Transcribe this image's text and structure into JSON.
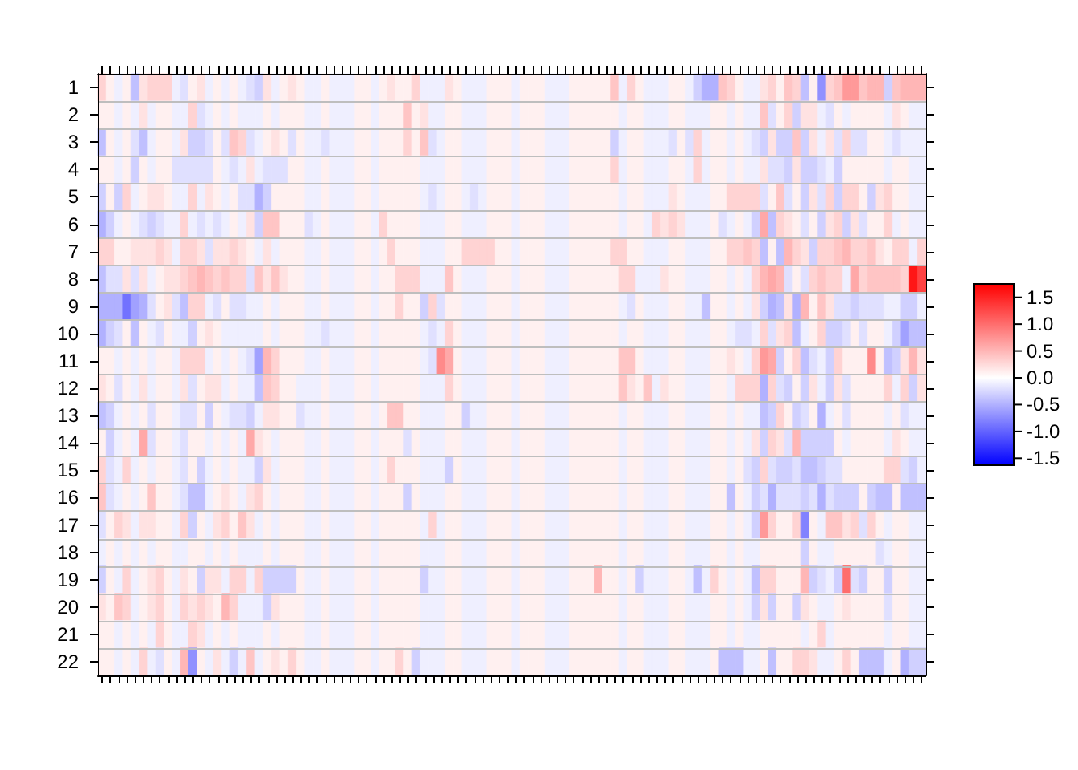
{
  "chart_data": {
    "type": "heatmap",
    "categories": [
      null,
      null,
      null,
      null,
      null,
      null,
      null,
      null,
      null,
      null,
      null,
      null,
      null,
      null,
      null,
      null,
      null,
      null,
      null,
      null,
      null,
      null,
      null,
      null,
      null,
      null,
      null,
      null,
      null,
      null,
      null,
      null,
      null,
      null,
      null,
      null,
      null,
      null,
      null,
      null,
      null,
      null,
      null,
      null,
      null,
      null,
      null,
      null,
      null,
      null,
      null,
      null,
      null,
      null,
      null,
      null,
      null,
      null,
      null,
      null,
      null,
      null,
      null,
      null,
      null,
      null,
      null,
      null,
      null,
      null,
      null,
      null,
      null,
      null,
      null,
      null,
      null,
      null,
      null,
      null,
      null,
      null,
      null,
      null,
      null,
      null,
      null,
      null,
      null,
      null,
      null,
      null,
      null,
      null,
      null,
      null,
      null,
      null,
      null,
      null
    ],
    "y_categories": [
      "1",
      "2",
      "3",
      "4",
      "5",
      "6",
      "7",
      "8",
      "9",
      "10",
      "11",
      "12",
      "13",
      "14",
      "15",
      "16",
      "17",
      "18",
      "19",
      "20",
      "21",
      "22"
    ],
    "cells": [
      [
        0.3,
        0.1,
        -0.1,
        0.1,
        -0.4,
        0.2,
        0.3,
        0.3,
        0.3,
        -0.1,
        -0.2,
        0.1,
        0.2,
        -0.1,
        0.1,
        -0.1,
        0.1,
        -0.1,
        -0.2,
        -0.3,
        0.2,
        -0.1,
        0.1,
        0.2,
        0.1,
        -0.1,
        -0.1,
        0.1,
        -0.1,
        -0.1,
        -0.1,
        0.1,
        0.1,
        -0.1,
        0.1,
        0.2,
        0.1,
        0.1,
        0.3,
        -0.1,
        -0.1,
        -0.1,
        0.2,
        0.1,
        -0.1,
        -0.1,
        -0.1,
        0.1,
        0.1,
        0.1,
        -0.1,
        0.1,
        0.1,
        0.1,
        -0.1,
        -0.1,
        -0.1,
        0.1,
        0.1,
        0.1,
        0.1,
        0.1,
        0.4,
        -0.1,
        0.3,
        0.1,
        -0.1,
        -0.1,
        -0.1,
        0.1,
        0.1,
        -0.1,
        -0.3,
        -0.5,
        -0.5,
        0.4,
        0.3,
        0.1,
        -0.1,
        -0.1,
        0.2,
        0.3,
        0.1,
        0.4,
        0.3,
        -0.4,
        0.1,
        -0.7,
        0.3,
        0.4,
        0.7,
        0.7,
        0.4,
        0.5,
        0.5,
        -0.3,
        0.4,
        0.5,
        0.5,
        0.5
      ],
      [
        0.1,
        0.1,
        -0.1,
        0.1,
        -0.1,
        0.2,
        -0.1,
        0.1,
        0.1,
        -0.1,
        -0.1,
        0.3,
        -0.2,
        -0.1,
        0.1,
        -0.1,
        0.1,
        -0.1,
        -0.1,
        -0.1,
        0.1,
        -0.1,
        0.1,
        0.1,
        0.1,
        -0.1,
        -0.1,
        0.1,
        -0.1,
        -0.1,
        -0.1,
        0.1,
        0.1,
        -0.1,
        0.1,
        0.1,
        0.1,
        0.4,
        0.1,
        0.2,
        -0.1,
        -0.1,
        0.1,
        0.1,
        -0.1,
        -0.1,
        -0.1,
        0.1,
        0.1,
        0.1,
        -0.1,
        0.1,
        0.1,
        0.1,
        -0.1,
        -0.1,
        -0.1,
        0.1,
        0.1,
        0.1,
        0.1,
        0.1,
        0.1,
        -0.1,
        0.1,
        0.1,
        -0.1,
        -0.1,
        -0.1,
        0.1,
        0.1,
        -0.1,
        -0.1,
        -0.1,
        0.1,
        0.1,
        -0.1,
        0.1,
        -0.1,
        -0.1,
        0.4,
        -0.2,
        0.1,
        0.3,
        -0.3,
        0.2,
        0.2,
        -0.1,
        -0.2,
        0.1,
        -0.1,
        0.1,
        0.1,
        0.1,
        0.1,
        -0.1,
        0.2,
        0.1,
        -0.1,
        -0.1
      ],
      [
        -0.4,
        0.1,
        -0.1,
        0.1,
        -0.2,
        -0.4,
        -0.1,
        0.1,
        0.1,
        -0.1,
        0.2,
        -0.3,
        -0.3,
        -0.2,
        0.1,
        -0.2,
        0.4,
        0.3,
        -0.2,
        -0.1,
        0.1,
        0.2,
        0.1,
        -0.2,
        0.1,
        -0.1,
        -0.1,
        -0.2,
        -0.1,
        -0.1,
        -0.1,
        0.1,
        0.1,
        -0.1,
        0.1,
        0.1,
        0.1,
        0.3,
        0.1,
        0.4,
        -0.2,
        -0.1,
        0.1,
        0.1,
        -0.1,
        -0.1,
        -0.1,
        0.1,
        0.1,
        0.1,
        -0.1,
        0.1,
        0.1,
        0.1,
        -0.1,
        -0.1,
        -0.1,
        0.1,
        0.1,
        0.1,
        0.1,
        0.1,
        -0.3,
        -0.1,
        0.1,
        0.1,
        -0.1,
        -0.1,
        -0.1,
        -0.2,
        0.1,
        -0.2,
        0.3,
        -0.1,
        0.1,
        0.1,
        -0.1,
        0.1,
        -0.1,
        -0.2,
        -0.3,
        0.2,
        -0.3,
        -0.3,
        0.4,
        -0.3,
        0.2,
        -0.1,
        0.2,
        -0.2,
        0.3,
        -0.2,
        -0.2,
        0.1,
        0.1,
        -0.1,
        -0.2,
        -0.1,
        -0.1,
        -0.1
      ],
      [
        0.1,
        0.1,
        -0.1,
        0.1,
        -0.3,
        0.1,
        -0.1,
        0.1,
        0.1,
        -0.2,
        -0.2,
        -0.2,
        -0.2,
        -0.2,
        0.1,
        -0.1,
        -0.2,
        -0.1,
        0.2,
        -0.1,
        -0.2,
        -0.2,
        -0.2,
        0.1,
        0.1,
        -0.1,
        -0.1,
        0.1,
        -0.1,
        -0.1,
        -0.1,
        0.1,
        0.1,
        -0.1,
        0.1,
        0.1,
        0.1,
        0.1,
        0.1,
        -0.1,
        -0.1,
        -0.1,
        0.1,
        0.1,
        -0.1,
        -0.1,
        -0.1,
        0.1,
        0.1,
        0.1,
        -0.1,
        0.1,
        0.1,
        0.1,
        -0.1,
        -0.1,
        -0.1,
        0.1,
        0.1,
        0.1,
        0.1,
        0.1,
        0.3,
        -0.1,
        0.1,
        0.1,
        -0.1,
        -0.1,
        -0.1,
        0.1,
        0.1,
        -0.1,
        0.3,
        -0.1,
        0.1,
        0.1,
        -0.1,
        0.1,
        -0.1,
        -0.1,
        0.2,
        -0.2,
        -0.2,
        -0.3,
        0.2,
        -0.3,
        -0.3,
        -0.2,
        -0.1,
        -0.3,
        0.1,
        0.1,
        0.1,
        0.1,
        0.1,
        -0.1,
        0.1,
        0.1,
        -0.1,
        -0.1
      ],
      [
        -0.3,
        0.1,
        -0.3,
        0.3,
        -0.1,
        0.1,
        0.2,
        0.2,
        0.1,
        -0.1,
        -0.1,
        0.3,
        -0.1,
        0.2,
        0.1,
        -0.1,
        0.1,
        -0.2,
        -0.2,
        -0.5,
        -0.3,
        0.1,
        0.1,
        0.1,
        0.1,
        -0.1,
        -0.1,
        0.1,
        -0.1,
        -0.1,
        -0.1,
        0.1,
        0.1,
        -0.1,
        0.1,
        0.1,
        0.1,
        0.1,
        0.1,
        -0.1,
        -0.2,
        -0.1,
        0.1,
        0.1,
        -0.1,
        -0.2,
        -0.1,
        0.1,
        0.1,
        0.1,
        -0.1,
        0.1,
        0.1,
        0.1,
        -0.1,
        -0.1,
        -0.1,
        0.1,
        0.1,
        0.1,
        0.1,
        0.1,
        0.1,
        -0.1,
        0.1,
        0.1,
        -0.1,
        -0.1,
        -0.1,
        0.2,
        0.1,
        -0.1,
        -0.1,
        -0.1,
        0.1,
        0.1,
        0.3,
        0.3,
        0.3,
        0.3,
        -0.2,
        0.1,
        0.4,
        -0.2,
        0.1,
        -0.3,
        0.2,
        -0.2,
        0.3,
        -0.3,
        0.3,
        0.3,
        0.1,
        -0.3,
        0.2,
        0.3,
        0.1,
        0.1,
        -0.1,
        -0.1
      ],
      [
        -0.5,
        -0.3,
        -0.1,
        0.1,
        -0.1,
        -0.2,
        -0.3,
        -0.2,
        -0.1,
        -0.1,
        0.3,
        -0.1,
        -0.2,
        -0.1,
        -0.2,
        -0.1,
        0.1,
        -0.1,
        0.2,
        -0.3,
        0.4,
        0.4,
        0.1,
        0.1,
        0.1,
        -0.2,
        -0.1,
        0.1,
        -0.1,
        -0.1,
        -0.1,
        0.1,
        0.1,
        -0.1,
        0.3,
        0.1,
        0.1,
        0.1,
        0.1,
        -0.1,
        -0.1,
        -0.1,
        0.1,
        0.1,
        -0.1,
        -0.1,
        -0.1,
        0.1,
        0.1,
        0.1,
        -0.1,
        0.1,
        0.1,
        0.1,
        -0.1,
        -0.1,
        -0.1,
        0.1,
        0.1,
        0.1,
        0.1,
        0.1,
        0.1,
        -0.1,
        0.1,
        0.1,
        -0.1,
        0.3,
        0.2,
        0.3,
        0.2,
        -0.1,
        -0.1,
        -0.1,
        0.1,
        -0.2,
        -0.1,
        0.1,
        -0.1,
        -0.3,
        0.6,
        -0.4,
        0.3,
        0.2,
        0.1,
        -0.2,
        0.1,
        -0.3,
        0.2,
        0.3,
        -0.3,
        0.2,
        -0.2,
        0.1,
        0.1,
        0.3,
        -0.1,
        0.1,
        -0.1,
        -0.1
      ],
      [
        0.3,
        0.3,
        0.1,
        0.1,
        0.2,
        0.2,
        0.2,
        0.3,
        0.2,
        -0.1,
        0.3,
        0.3,
        0.2,
        -0.2,
        0.2,
        0.2,
        0.3,
        0.2,
        0.1,
        -0.1,
        0.2,
        -0.1,
        0.1,
        0.1,
        0.1,
        -0.1,
        -0.1,
        0.1,
        -0.1,
        -0.1,
        -0.1,
        0.1,
        0.1,
        -0.1,
        0.1,
        0.3,
        0.1,
        0.1,
        0.1,
        -0.1,
        -0.1,
        -0.1,
        0.1,
        0.1,
        0.3,
        0.3,
        0.3,
        0.3,
        0.1,
        0.1,
        -0.1,
        0.1,
        0.1,
        0.1,
        -0.1,
        -0.1,
        -0.1,
        0.1,
        0.1,
        0.1,
        0.1,
        0.1,
        0.3,
        0.3,
        0.1,
        0.1,
        -0.1,
        -0.1,
        -0.1,
        0.1,
        0.1,
        -0.1,
        -0.1,
        -0.1,
        0.1,
        0.1,
        0.3,
        0.3,
        0.4,
        0.3,
        -0.4,
        0.1,
        -0.4,
        0.5,
        0.3,
        0.2,
        -0.3,
        0.3,
        0.3,
        0.4,
        0.5,
        0.3,
        0.3,
        0.4,
        0.2,
        0.1,
        0.3,
        0.3,
        -0.1,
        0.3
      ],
      [
        -0.4,
        -0.2,
        -0.2,
        0.2,
        -0.2,
        0.2,
        -0.1,
        0.1,
        0.2,
        0.2,
        0.3,
        0.4,
        0.5,
        0.4,
        0.3,
        0.4,
        0.3,
        0.3,
        -0.2,
        0.4,
        0.2,
        0.4,
        0.2,
        0.1,
        0.1,
        -0.1,
        -0.1,
        0.1,
        -0.1,
        -0.1,
        -0.1,
        0.1,
        0.1,
        -0.1,
        0.1,
        0.1,
        0.3,
        0.3,
        0.3,
        -0.1,
        -0.1,
        -0.1,
        0.4,
        0.1,
        -0.1,
        -0.1,
        -0.1,
        0.1,
        0.1,
        0.1,
        -0.1,
        0.1,
        0.1,
        0.1,
        -0.1,
        -0.1,
        -0.1,
        0.1,
        0.1,
        0.1,
        0.1,
        0.1,
        0.1,
        0.3,
        0.3,
        -0.1,
        -0.1,
        -0.1,
        0.2,
        0.1,
        0.1,
        -0.1,
        -0.1,
        -0.1,
        0.1,
        0.1,
        -0.1,
        0.1,
        -0.1,
        0.3,
        0.5,
        0.6,
        0.5,
        -0.2,
        0.1,
        -0.2,
        0.3,
        0.4,
        0.3,
        0.3,
        -0.1,
        0.6,
        0.3,
        0.4,
        0.4,
        0.4,
        0.4,
        0.3,
        1.6,
        1.3
      ],
      [
        -0.5,
        -0.5,
        -0.5,
        -0.9,
        -0.6,
        -0.5,
        -0.2,
        0.1,
        0.2,
        -0.2,
        -0.4,
        0.3,
        0.3,
        -0.1,
        -0.2,
        0.1,
        -0.2,
        -0.2,
        -0.1,
        -0.1,
        0.1,
        -0.1,
        0.1,
        0.1,
        0.1,
        -0.1,
        -0.1,
        0.1,
        -0.1,
        -0.1,
        -0.1,
        0.1,
        0.1,
        -0.1,
        0.1,
        0.1,
        0.3,
        0.1,
        0.1,
        -0.3,
        0.3,
        -0.2,
        0.1,
        0.1,
        -0.1,
        -0.1,
        -0.1,
        0.1,
        0.1,
        0.1,
        -0.1,
        0.1,
        0.1,
        0.1,
        -0.1,
        -0.1,
        -0.1,
        0.1,
        0.1,
        0.1,
        0.1,
        0.1,
        0.1,
        -0.1,
        -0.2,
        0.1,
        -0.1,
        -0.1,
        -0.1,
        0.1,
        0.1,
        -0.1,
        -0.1,
        -0.4,
        0.1,
        0.1,
        -0.1,
        0.1,
        -0.1,
        0.2,
        -0.3,
        -0.5,
        -0.4,
        0.2,
        -0.5,
        0.5,
        0.1,
        0.4,
        0.2,
        -0.2,
        -0.2,
        -0.3,
        -0.2,
        -0.2,
        -0.2,
        -0.1,
        -0.1,
        -0.3,
        -0.3,
        -0.1
      ],
      [
        -0.5,
        -0.3,
        -0.2,
        0.1,
        -0.4,
        0.1,
        -0.1,
        -0.2,
        0.1,
        -0.1,
        -0.1,
        -0.3,
        0.1,
        0.2,
        0.1,
        -0.1,
        -0.1,
        -0.1,
        -0.1,
        -0.1,
        0.1,
        -0.1,
        0.1,
        0.1,
        0.1,
        -0.1,
        -0.1,
        -0.2,
        -0.1,
        -0.1,
        -0.1,
        0.1,
        0.1,
        -0.1,
        0.1,
        0.1,
        0.1,
        0.1,
        0.1,
        -0.1,
        -0.2,
        -0.1,
        0.3,
        0.1,
        -0.1,
        -0.1,
        -0.1,
        0.1,
        0.1,
        0.1,
        -0.1,
        0.1,
        0.1,
        0.1,
        -0.1,
        -0.1,
        -0.1,
        0.1,
        0.1,
        0.1,
        0.1,
        0.1,
        0.1,
        -0.1,
        0.1,
        0.1,
        -0.1,
        -0.1,
        -0.1,
        0.1,
        0.1,
        -0.1,
        -0.1,
        -0.1,
        0.1,
        0.1,
        -0.1,
        -0.2,
        -0.2,
        -0.1,
        0.3,
        -0.2,
        0.2,
        0.3,
        -0.4,
        -0.1,
        0.1,
        0.3,
        -0.3,
        -0.3,
        -0.2,
        0.1,
        -0.2,
        0.1,
        0.1,
        -0.1,
        -0.3,
        -0.6,
        -0.4,
        -0.4
      ],
      [
        0.1,
        0.1,
        -0.1,
        0.1,
        -0.1,
        0.1,
        -0.1,
        0.1,
        0.1,
        -0.1,
        0.3,
        0.3,
        0.3,
        -0.1,
        0.1,
        -0.1,
        0.1,
        -0.1,
        -0.2,
        -0.6,
        0.5,
        0.3,
        0.1,
        0.1,
        0.1,
        -0.1,
        -0.1,
        0.1,
        -0.1,
        -0.1,
        -0.1,
        0.1,
        0.1,
        -0.1,
        0.1,
        0.1,
        0.1,
        0.1,
        0.1,
        -0.1,
        -0.2,
        0.8,
        0.6,
        0.1,
        -0.1,
        -0.1,
        -0.1,
        0.1,
        0.1,
        0.1,
        -0.1,
        0.1,
        0.1,
        0.1,
        -0.1,
        -0.1,
        -0.1,
        0.1,
        0.1,
        0.1,
        0.1,
        0.1,
        0.1,
        0.4,
        0.4,
        0.1,
        -0.1,
        -0.1,
        -0.1,
        0.1,
        0.1,
        -0.1,
        -0.1,
        -0.1,
        0.1,
        0.1,
        0.2,
        0.1,
        -0.1,
        0.3,
        0.7,
        0.6,
        -0.3,
        0.1,
        0.3,
        -0.4,
        -0.2,
        -0.1,
        -0.3,
        0.3,
        0.1,
        0.1,
        0.1,
        0.8,
        0.1,
        -0.4,
        -0.3,
        0.2,
        0.5,
        0.2
      ],
      [
        0.2,
        0.1,
        -0.2,
        0.1,
        -0.1,
        0.2,
        -0.1,
        0.1,
        0.1,
        -0.1,
        0.2,
        -0.2,
        0.1,
        0.2,
        0.2,
        -0.1,
        0.1,
        -0.1,
        -0.1,
        -0.4,
        0.4,
        0.3,
        0.1,
        0.1,
        -0.1,
        -0.1,
        -0.1,
        0.1,
        -0.1,
        -0.1,
        -0.1,
        0.1,
        0.1,
        -0.1,
        0.1,
        0.1,
        0.1,
        0.1,
        0.1,
        -0.1,
        -0.1,
        -0.1,
        0.3,
        0.1,
        -0.1,
        -0.1,
        -0.1,
        0.1,
        0.1,
        0.1,
        -0.1,
        0.1,
        0.1,
        0.1,
        -0.1,
        -0.1,
        -0.1,
        0.1,
        0.1,
        0.1,
        0.1,
        0.1,
        0.1,
        0.4,
        0.2,
        0.1,
        0.4,
        -0.1,
        0.2,
        0.1,
        0.1,
        -0.1,
        -0.1,
        -0.1,
        0.1,
        0.1,
        -0.1,
        0.3,
        0.3,
        0.3,
        -0.5,
        0.3,
        -0.2,
        -0.3,
        0.1,
        -0.3,
        0.2,
        -0.1,
        -0.3,
        0.2,
        -0.2,
        0.1,
        0.1,
        0.1,
        0.1,
        0.3,
        -0.1,
        0.3,
        -0.3,
        0.2
      ],
      [
        -0.4,
        -0.3,
        -0.1,
        0.1,
        -0.1,
        0.1,
        -0.2,
        0.1,
        0.1,
        -0.1,
        -0.2,
        -0.2,
        0.1,
        -0.3,
        0.1,
        -0.1,
        -0.2,
        -0.2,
        -0.3,
        -0.1,
        0.2,
        0.2,
        0.1,
        0.1,
        -0.2,
        -0.1,
        -0.1,
        0.1,
        -0.1,
        -0.1,
        -0.1,
        0.1,
        0.1,
        -0.1,
        0.1,
        0.4,
        0.4,
        0.1,
        0.1,
        -0.1,
        -0.1,
        -0.1,
        0.1,
        0.1,
        -0.3,
        -0.1,
        -0.1,
        0.1,
        0.1,
        0.1,
        -0.1,
        0.1,
        0.1,
        0.1,
        -0.1,
        -0.1,
        -0.1,
        0.1,
        0.1,
        0.1,
        0.1,
        0.1,
        0.1,
        -0.1,
        0.1,
        0.1,
        -0.1,
        -0.1,
        -0.1,
        0.1,
        0.1,
        -0.1,
        -0.1,
        -0.1,
        0.1,
        0.1,
        -0.1,
        0.1,
        -0.1,
        -0.1,
        -0.4,
        -0.3,
        0.3,
        0.1,
        -0.3,
        -0.2,
        0.1,
        -0.5,
        -0.1,
        0.1,
        -0.2,
        0.1,
        0.1,
        0.1,
        0.1,
        -0.1,
        0.1,
        -0.2,
        -0.1,
        -0.1
      ],
      [
        0.1,
        -0.3,
        -0.1,
        0.1,
        -0.1,
        0.6,
        -0.2,
        0.1,
        0.1,
        -0.1,
        -0.2,
        0.1,
        0.1,
        -0.1,
        0.1,
        -0.1,
        0.1,
        -0.1,
        0.6,
        0.2,
        0.1,
        -0.1,
        0.1,
        0.1,
        0.1,
        -0.1,
        -0.1,
        0.1,
        -0.1,
        -0.1,
        -0.1,
        0.1,
        0.1,
        -0.1,
        0.1,
        0.1,
        0.1,
        -0.2,
        0.1,
        -0.1,
        -0.1,
        -0.1,
        0.1,
        0.1,
        -0.1,
        -0.1,
        -0.1,
        0.1,
        0.1,
        0.1,
        -0.1,
        0.1,
        0.1,
        0.1,
        -0.1,
        -0.1,
        -0.1,
        0.1,
        0.1,
        0.1,
        0.1,
        0.1,
        0.1,
        -0.1,
        0.1,
        0.1,
        -0.1,
        -0.1,
        -0.1,
        0.1,
        0.1,
        -0.1,
        -0.1,
        -0.1,
        0.1,
        0.1,
        -0.1,
        0.1,
        -0.1,
        0.2,
        -0.3,
        0.3,
        0.2,
        -0.2,
        0.5,
        -0.3,
        -0.3,
        -0.3,
        -0.3,
        0.1,
        -0.1,
        0.1,
        0.1,
        0.1,
        0.1,
        -0.1,
        0.2,
        0.1,
        -0.1,
        -0.1
      ],
      [
        0.3,
        -0.2,
        -0.1,
        0.3,
        -0.1,
        0.1,
        -0.1,
        0.1,
        0.1,
        -0.1,
        -0.2,
        0.1,
        -0.3,
        -0.1,
        0.1,
        -0.1,
        0.1,
        -0.1,
        -0.1,
        -0.3,
        0.2,
        -0.1,
        0.1,
        0.1,
        0.1,
        -0.1,
        -0.1,
        0.1,
        -0.1,
        -0.1,
        -0.1,
        0.1,
        0.1,
        -0.1,
        0.1,
        0.3,
        0.1,
        0.1,
        0.1,
        -0.1,
        -0.1,
        -0.1,
        -0.3,
        0.1,
        -0.1,
        -0.1,
        -0.1,
        0.1,
        0.1,
        0.1,
        -0.1,
        0.1,
        0.1,
        0.1,
        -0.1,
        -0.1,
        -0.1,
        0.1,
        0.1,
        0.1,
        0.1,
        0.1,
        0.1,
        -0.1,
        0.1,
        0.1,
        -0.1,
        -0.1,
        -0.1,
        0.1,
        0.1,
        -0.1,
        -0.1,
        -0.1,
        0.1,
        0.1,
        -0.1,
        0.1,
        -0.2,
        -0.3,
        0.3,
        -0.2,
        -0.3,
        -0.3,
        -0.2,
        -0.4,
        -0.4,
        -0.3,
        -0.2,
        -0.2,
        0.1,
        0.1,
        0.1,
        0.1,
        0.1,
        0.3,
        0.3,
        -0.2,
        -0.3,
        -0.1
      ],
      [
        0.4,
        -0.2,
        -0.1,
        0.1,
        -0.1,
        0.1,
        0.4,
        0.1,
        0.1,
        -0.1,
        -0.2,
        -0.4,
        -0.4,
        -0.1,
        0.1,
        0.2,
        0.1,
        -0.1,
        0.2,
        0.3,
        0.1,
        -0.1,
        0.1,
        0.1,
        0.1,
        -0.1,
        -0.1,
        0.1,
        -0.1,
        -0.1,
        -0.1,
        0.1,
        0.1,
        -0.1,
        0.1,
        0.1,
        0.1,
        -0.3,
        0.1,
        -0.1,
        -0.1,
        -0.1,
        0.1,
        0.1,
        -0.1,
        -0.1,
        -0.1,
        0.1,
        0.1,
        0.1,
        -0.1,
        0.1,
        0.1,
        0.1,
        -0.1,
        -0.1,
        -0.1,
        0.1,
        0.1,
        0.1,
        0.1,
        0.1,
        0.1,
        -0.1,
        0.1,
        0.1,
        -0.1,
        -0.1,
        -0.1,
        0.1,
        0.1,
        -0.1,
        -0.1,
        -0.1,
        0.1,
        0.1,
        -0.4,
        0.1,
        -0.1,
        -0.3,
        -0.2,
        -0.5,
        -0.2,
        -0.2,
        -0.2,
        -0.3,
        -0.2,
        -0.5,
        -0.2,
        -0.3,
        -0.3,
        -0.3,
        0.1,
        -0.3,
        -0.4,
        -0.4,
        0.1,
        -0.4,
        -0.4,
        -0.4
      ],
      [
        -0.2,
        0.1,
        0.3,
        0.2,
        -0.1,
        0.2,
        0.2,
        0.1,
        0.1,
        -0.1,
        0.3,
        -0.3,
        0.1,
        -0.1,
        0.2,
        0.3,
        0.1,
        0.4,
        0.2,
        -0.1,
        0.1,
        -0.1,
        0.1,
        0.1,
        0.1,
        -0.1,
        -0.1,
        0.1,
        -0.1,
        -0.1,
        -0.1,
        0.1,
        0.1,
        -0.1,
        0.1,
        0.1,
        0.1,
        0.1,
        0.1,
        -0.1,
        0.3,
        -0.1,
        0.1,
        0.1,
        -0.1,
        -0.1,
        -0.1,
        0.1,
        0.1,
        0.1,
        -0.1,
        0.1,
        0.1,
        0.1,
        -0.1,
        -0.1,
        -0.1,
        0.1,
        0.1,
        0.1,
        0.1,
        0.1,
        0.1,
        -0.1,
        0.1,
        0.1,
        -0.1,
        -0.1,
        -0.1,
        0.1,
        0.1,
        -0.1,
        -0.1,
        -0.1,
        0.1,
        0.1,
        -0.1,
        0.1,
        -0.1,
        -0.3,
        0.7,
        0.3,
        0.1,
        0.1,
        0.3,
        -0.8,
        0.1,
        -0.1,
        0.4,
        0.4,
        0.2,
        0.3,
        -0.2,
        0.3,
        0.1,
        -0.1,
        0.1,
        0.1,
        -0.1,
        -0.1
      ],
      [
        -0.1,
        0.1,
        -0.1,
        0.1,
        -0.1,
        0.1,
        -0.1,
        0.1,
        0.1,
        -0.1,
        -0.1,
        0.1,
        0.1,
        -0.1,
        0.1,
        -0.1,
        0.1,
        -0.1,
        -0.1,
        -0.1,
        0.1,
        -0.1,
        0.1,
        0.1,
        0.1,
        -0.1,
        -0.1,
        0.1,
        -0.1,
        -0.1,
        -0.1,
        0.1,
        0.1,
        -0.1,
        0.1,
        0.1,
        0.1,
        0.1,
        0.1,
        -0.1,
        -0.1,
        -0.1,
        0.1,
        0.1,
        -0.1,
        -0.1,
        -0.1,
        0.1,
        0.1,
        0.1,
        -0.1,
        0.1,
        0.1,
        0.1,
        -0.1,
        -0.1,
        -0.1,
        0.1,
        0.1,
        0.1,
        0.1,
        0.1,
        0.1,
        -0.1,
        0.1,
        0.1,
        -0.1,
        -0.1,
        -0.1,
        0.1,
        0.1,
        -0.1,
        -0.1,
        -0.1,
        0.1,
        0.1,
        -0.1,
        0.1,
        -0.1,
        -0.1,
        0.1,
        0.1,
        0.1,
        0.1,
        0.1,
        -0.3,
        0.1,
        -0.1,
        -0.1,
        0.1,
        0.1,
        0.1,
        0.1,
        0.1,
        -0.2,
        -0.1,
        0.1,
        0.1,
        -0.1,
        -0.1
      ],
      [
        -0.3,
        0.1,
        -0.1,
        0.3,
        -0.1,
        0.1,
        0.2,
        0.3,
        0.1,
        -0.1,
        0.2,
        0.1,
        -0.3,
        0.2,
        0.2,
        -0.1,
        0.3,
        0.3,
        -0.1,
        0.3,
        -0.3,
        -0.3,
        -0.3,
        -0.3,
        0.1,
        -0.1,
        -0.1,
        0.1,
        -0.1,
        -0.1,
        -0.1,
        0.1,
        0.1,
        -0.1,
        0.1,
        0.1,
        0.1,
        0.1,
        0.1,
        -0.3,
        -0.1,
        -0.1,
        0.1,
        0.1,
        -0.1,
        -0.1,
        -0.1,
        0.1,
        0.1,
        0.1,
        -0.1,
        0.1,
        0.1,
        0.1,
        -0.1,
        -0.1,
        -0.1,
        0.1,
        0.1,
        0.1,
        0.5,
        0.1,
        0.1,
        -0.1,
        0.1,
        -0.3,
        -0.1,
        -0.1,
        -0.1,
        0.1,
        0.1,
        -0.1,
        -0.4,
        -0.1,
        0.3,
        0.1,
        -0.1,
        0.1,
        -0.1,
        -0.4,
        0.3,
        0.3,
        0.1,
        0.1,
        0.1,
        0.5,
        -0.3,
        -0.2,
        -0.1,
        -0.3,
        1.0,
        -0.2,
        -0.3,
        0.1,
        0.1,
        -0.3,
        0.1,
        0.1,
        -0.1,
        -0.1
      ],
      [
        0.2,
        0.1,
        0.4,
        0.3,
        -0.1,
        0.1,
        0.2,
        0.3,
        0.1,
        -0.1,
        0.3,
        0.2,
        0.3,
        0.2,
        0.1,
        0.5,
        0.3,
        -0.1,
        -0.1,
        -0.1,
        -0.3,
        0.2,
        0.1,
        0.1,
        0.1,
        -0.1,
        -0.1,
        0.1,
        -0.1,
        -0.1,
        -0.1,
        0.1,
        0.1,
        -0.1,
        0.1,
        0.1,
        0.1,
        0.1,
        0.1,
        -0.1,
        -0.1,
        -0.1,
        0.1,
        0.1,
        -0.1,
        -0.1,
        -0.1,
        0.1,
        0.1,
        0.1,
        -0.1,
        0.1,
        0.1,
        0.1,
        -0.1,
        -0.1,
        -0.1,
        0.1,
        0.1,
        0.1,
        0.1,
        0.1,
        0.1,
        -0.1,
        0.1,
        0.1,
        -0.1,
        -0.1,
        -0.1,
        0.1,
        0.1,
        -0.1,
        -0.1,
        -0.1,
        0.1,
        0.1,
        -0.1,
        0.1,
        -0.1,
        -0.3,
        0.2,
        -0.3,
        0.1,
        0.1,
        -0.3,
        0.2,
        0.1,
        -0.1,
        -0.1,
        0.1,
        0.2,
        0.1,
        0.1,
        0.1,
        0.1,
        -0.2,
        0.1,
        0.1,
        -0.1,
        -0.1
      ],
      [
        0.1,
        0.1,
        -0.1,
        0.1,
        -0.1,
        0.1,
        -0.1,
        0.3,
        0.1,
        -0.1,
        -0.1,
        0.3,
        0.2,
        -0.1,
        0.1,
        -0.1,
        0.1,
        -0.1,
        -0.1,
        -0.1,
        0.1,
        -0.1,
        0.1,
        0.1,
        0.1,
        -0.1,
        -0.1,
        0.1,
        -0.1,
        -0.1,
        -0.1,
        0.1,
        0.1,
        -0.1,
        0.1,
        0.1,
        0.1,
        0.1,
        0.1,
        -0.1,
        -0.1,
        -0.1,
        0.1,
        0.1,
        -0.1,
        -0.1,
        -0.1,
        0.1,
        0.1,
        0.1,
        -0.1,
        0.1,
        0.1,
        0.1,
        -0.1,
        -0.1,
        -0.1,
        0.1,
        0.1,
        0.1,
        0.1,
        0.1,
        0.1,
        -0.1,
        0.1,
        0.1,
        -0.1,
        -0.1,
        -0.1,
        0.1,
        0.1,
        -0.1,
        -0.1,
        -0.1,
        0.1,
        0.1,
        -0.1,
        0.1,
        -0.1,
        -0.1,
        0.1,
        0.1,
        0.1,
        0.1,
        0.1,
        -0.1,
        0.1,
        0.3,
        -0.1,
        0.1,
        0.1,
        0.1,
        0.1,
        0.1,
        0.1,
        -0.1,
        0.1,
        0.1,
        -0.1,
        -0.1
      ],
      [
        0.1,
        0.1,
        -0.1,
        0.1,
        -0.1,
        0.3,
        -0.1,
        -0.2,
        0.1,
        -0.1,
        0.5,
        -0.7,
        0.1,
        -0.1,
        0.2,
        -0.1,
        -0.3,
        -0.1,
        0.4,
        -0.1,
        0.1,
        0.2,
        0.1,
        0.3,
        0.1,
        -0.1,
        -0.1,
        0.1,
        -0.1,
        -0.1,
        -0.1,
        0.1,
        0.1,
        -0.1,
        0.1,
        0.1,
        0.3,
        0.1,
        -0.3,
        -0.1,
        -0.1,
        -0.1,
        0.1,
        0.1,
        -0.1,
        -0.1,
        -0.1,
        0.1,
        0.1,
        0.1,
        -0.1,
        0.1,
        0.1,
        0.1,
        -0.1,
        -0.1,
        -0.1,
        0.1,
        0.1,
        0.1,
        0.1,
        0.1,
        0.1,
        -0.1,
        0.1,
        0.1,
        -0.1,
        -0.1,
        -0.1,
        0.1,
        0.1,
        -0.1,
        -0.1,
        -0.1,
        0.1,
        -0.4,
        -0.4,
        -0.4,
        -0.1,
        -0.1,
        0.1,
        -0.4,
        0.1,
        0.1,
        0.3,
        0.3,
        0.2,
        -0.1,
        -0.1,
        0.1,
        0.3,
        0.1,
        -0.4,
        -0.4,
        -0.4,
        -0.1,
        0.1,
        -0.5,
        -0.3,
        -0.3
      ]
    ],
    "clim": [
      -1.63,
      1.75
    ],
    "cticks": [
      -1.5,
      {
        "value": -1,
        "label": "-1.0"
      },
      -0.5,
      {
        "value": 0,
        "label": "0.0"
      },
      0.5,
      {
        "value": 1,
        "label": "1.0"
      },
      1.5
    ],
    "grid": "y",
    "tick_labels": "y"
  }
}
